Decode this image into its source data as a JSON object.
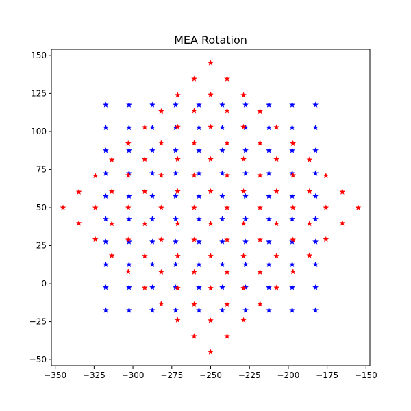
{
  "chart_data": {
    "type": "scatter",
    "title": "MEA Rotation",
    "xlabel": "",
    "ylabel": "",
    "xlim": [
      -352.5,
      -147.5
    ],
    "ylim": [
      -54,
      154
    ],
    "xticks": [
      -350,
      -325,
      -300,
      -275,
      -250,
      -225,
      -200,
      -175,
      -150
    ],
    "yticks": [
      -50,
      -25,
      0,
      25,
      50,
      75,
      100,
      125,
      150
    ],
    "grid": false,
    "marker": "star",
    "series": [
      {
        "color": "#0000ff",
        "grid_x": [
          -317.5,
          -302.5,
          -287.5,
          -272.5,
          -257.5,
          -242.5,
          -227.5,
          -212.5,
          -197.5,
          -182.5
        ],
        "grid_y": [
          117.5,
          102.5,
          87.5,
          72.5,
          57.5,
          42.5,
          27.5,
          12.5,
          -2.5,
          -17.5
        ]
      },
      {
        "color": "#ff0000",
        "points": [
          [
            -250,
            145
          ],
          [
            -260.6,
            134.6
          ],
          [
            -239.4,
            134.6
          ],
          [
            -271.2,
            123.9
          ],
          [
            -250,
            124.2
          ],
          [
            -228.8,
            123.9
          ],
          [
            -281.8,
            113.3
          ],
          [
            -260.6,
            113.6
          ],
          [
            -239.4,
            113.6
          ],
          [
            -218.2,
            113.3
          ],
          [
            -292.4,
            102.7
          ],
          [
            -271.2,
            103.0
          ],
          [
            -250,
            103.0
          ],
          [
            -228.8,
            103.0
          ],
          [
            -207.6,
            102.7
          ],
          [
            -303.0,
            92.1
          ],
          [
            -281.8,
            92.4
          ],
          [
            -260.6,
            92.4
          ],
          [
            -239.4,
            92.4
          ],
          [
            -218.2,
            92.4
          ],
          [
            -197.0,
            92.1
          ],
          [
            -313.6,
            81.5
          ],
          [
            -292.4,
            81.8
          ],
          [
            -271.2,
            81.8
          ],
          [
            -250,
            81.8
          ],
          [
            -228.8,
            81.8
          ],
          [
            -207.6,
            81.8
          ],
          [
            -186.4,
            81.5
          ],
          [
            -324.2,
            70.9
          ],
          [
            -303.0,
            71.2
          ],
          [
            -281.8,
            71.2
          ],
          [
            -260.6,
            71.2
          ],
          [
            -239.4,
            71.2
          ],
          [
            -218.2,
            71.2
          ],
          [
            -197.0,
            71.2
          ],
          [
            -175.8,
            70.9
          ],
          [
            -334.8,
            60.3
          ],
          [
            -313.6,
            60.6
          ],
          [
            -292.4,
            60.6
          ],
          [
            -271.2,
            60.6
          ],
          [
            -250,
            60.6
          ],
          [
            -228.8,
            60.6
          ],
          [
            -207.6,
            60.6
          ],
          [
            -186.4,
            60.6
          ],
          [
            -165.2,
            60.3
          ],
          [
            -345,
            50
          ],
          [
            -324.2,
            50
          ],
          [
            -303.0,
            50
          ],
          [
            -281.8,
            50
          ],
          [
            -260.6,
            50
          ],
          [
            -239.4,
            50
          ],
          [
            -218.2,
            50
          ],
          [
            -197.0,
            50
          ],
          [
            -175.8,
            50
          ],
          [
            -155,
            50
          ],
          [
            -334.8,
            39.7
          ],
          [
            -313.6,
            39.4
          ],
          [
            -292.4,
            39.4
          ],
          [
            -271.2,
            39.4
          ],
          [
            -250,
            39.4
          ],
          [
            -228.8,
            39.4
          ],
          [
            -207.6,
            39.4
          ],
          [
            -186.4,
            39.4
          ],
          [
            -165.2,
            39.7
          ],
          [
            -324.2,
            29.1
          ],
          [
            -303.0,
            28.8
          ],
          [
            -281.8,
            28.8
          ],
          [
            -260.6,
            28.8
          ],
          [
            -239.4,
            28.8
          ],
          [
            -218.2,
            28.8
          ],
          [
            -197.0,
            28.8
          ],
          [
            -175.8,
            29.1
          ],
          [
            -313.6,
            18.5
          ],
          [
            -292.4,
            18.2
          ],
          [
            -271.2,
            18.2
          ],
          [
            -250,
            18.2
          ],
          [
            -228.8,
            18.2
          ],
          [
            -207.6,
            18.2
          ],
          [
            -186.4,
            18.5
          ],
          [
            -303.0,
            7.9
          ],
          [
            -281.8,
            7.6
          ],
          [
            -260.6,
            7.6
          ],
          [
            -239.4,
            7.6
          ],
          [
            -218.2,
            7.6
          ],
          [
            -197.0,
            7.9
          ],
          [
            -292.4,
            -2.7
          ],
          [
            -271.2,
            -3.0
          ],
          [
            -250,
            -3.0
          ],
          [
            -228.8,
            -3.0
          ],
          [
            -207.6,
            -2.7
          ],
          [
            -281.8,
            -13.3
          ],
          [
            -260.6,
            -13.6
          ],
          [
            -239.4,
            -13.6
          ],
          [
            -218.2,
            -13.3
          ],
          [
            -271.2,
            -23.9
          ],
          [
            -250,
            -24.2
          ],
          [
            -228.8,
            -23.9
          ],
          [
            -260.6,
            -34.6
          ],
          [
            -239.4,
            -34.6
          ],
          [
            -250,
            -45
          ]
        ]
      }
    ]
  }
}
